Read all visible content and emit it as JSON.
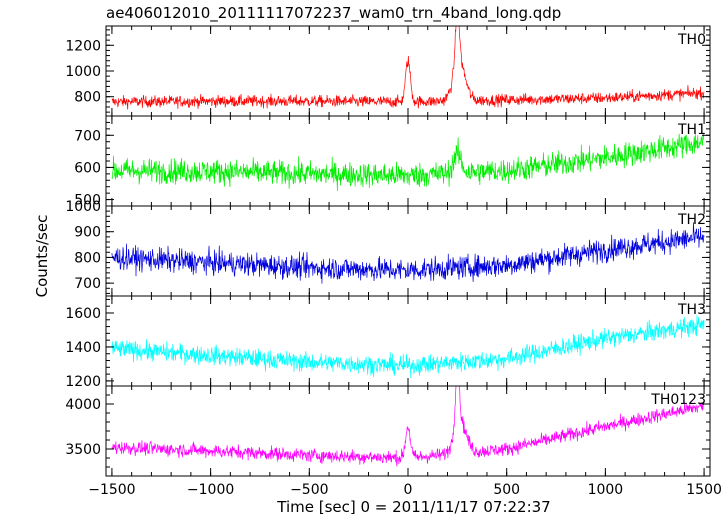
{
  "chart_data": {
    "type": "line",
    "title": "ae406012010_20111117072237_wam0_trn_4band_long.qdp",
    "xlabel": "Time [sec] 0 = 2011/11/17 07:22:37",
    "ylabel": "Counts/sec",
    "xlim": [
      -1530,
      1530
    ],
    "xticks": [
      -1500,
      -1000,
      -500,
      0,
      500,
      1000,
      1500
    ],
    "xtick_labels": [
      "−1500",
      "−1000",
      "−500",
      "0",
      "500",
      "1000",
      "1500"
    ],
    "grid": false,
    "panels": [
      {
        "name": "TH0",
        "color": "#ff0000",
        "ylim": [
          650,
          1350
        ],
        "yticks": [
          800,
          1000,
          1200
        ],
        "ytick_labels": [
          "800",
          "1000",
          "1200"
        ],
        "noise": 45,
        "x": [
          -1500,
          -1000,
          -500,
          0,
          500,
          1000,
          1500
        ],
        "y": [
          760,
          765,
          765,
          760,
          775,
          790,
          830
        ],
        "peaks": [
          {
            "x": 0,
            "height": 320,
            "width": 12
          },
          {
            "x": 250,
            "height": 430,
            "width": 10
          },
          {
            "x": 260,
            "height": 300,
            "width": 30
          }
        ]
      },
      {
        "name": "TH1",
        "color": "#00ee00",
        "ylim": [
          480,
          760
        ],
        "yticks": [
          500,
          600,
          700
        ],
        "ytick_labels": [
          "500",
          "600",
          "700"
        ],
        "noise": 38,
        "x": [
          -1500,
          -1000,
          -500,
          0,
          500,
          1000,
          1500
        ],
        "y": [
          590,
          588,
          580,
          575,
          590,
          630,
          680
        ],
        "peaks": [
          {
            "x": 250,
            "height": 60,
            "width": 20
          }
        ]
      },
      {
        "name": "TH2",
        "color": "#0000dd",
        "ylim": [
          650,
          1000
        ],
        "yticks": [
          700,
          800,
          900,
          1000
        ],
        "ytick_labels": [
          "700",
          "800",
          "900",
          "1000"
        ],
        "noise": 45,
        "x": [
          -1500,
          -1000,
          -500,
          0,
          500,
          1000,
          1500
        ],
        "y": [
          800,
          780,
          760,
          750,
          770,
          830,
          880
        ],
        "peaks": []
      },
      {
        "name": "TH3",
        "color": "#00ffff",
        "ylim": [
          1170,
          1700
        ],
        "yticks": [
          1200,
          1400,
          1600
        ],
        "ytick_labels": [
          "1200",
          "1400",
          "1600"
        ],
        "noise": 55,
        "x": [
          -1500,
          -1000,
          -500,
          0,
          500,
          1000,
          1500
        ],
        "y": [
          1390,
          1350,
          1310,
          1290,
          1330,
          1450,
          1530
        ],
        "peaks": []
      },
      {
        "name": "TH0123",
        "color": "#ff00ff",
        "ylim": [
          3200,
          4200
        ],
        "yticks": [
          3500,
          4000
        ],
        "ytick_labels": [
          "3500",
          "4000"
        ],
        "noise": 75,
        "x": [
          -1500,
          -1000,
          -500,
          0,
          500,
          1000,
          1500
        ],
        "y": [
          3520,
          3480,
          3430,
          3400,
          3500,
          3750,
          3980
        ],
        "peaks": [
          {
            "x": 0,
            "height": 350,
            "width": 12
          },
          {
            "x": 250,
            "height": 650,
            "width": 10
          },
          {
            "x": 265,
            "height": 350,
            "width": 30
          }
        ]
      }
    ]
  }
}
